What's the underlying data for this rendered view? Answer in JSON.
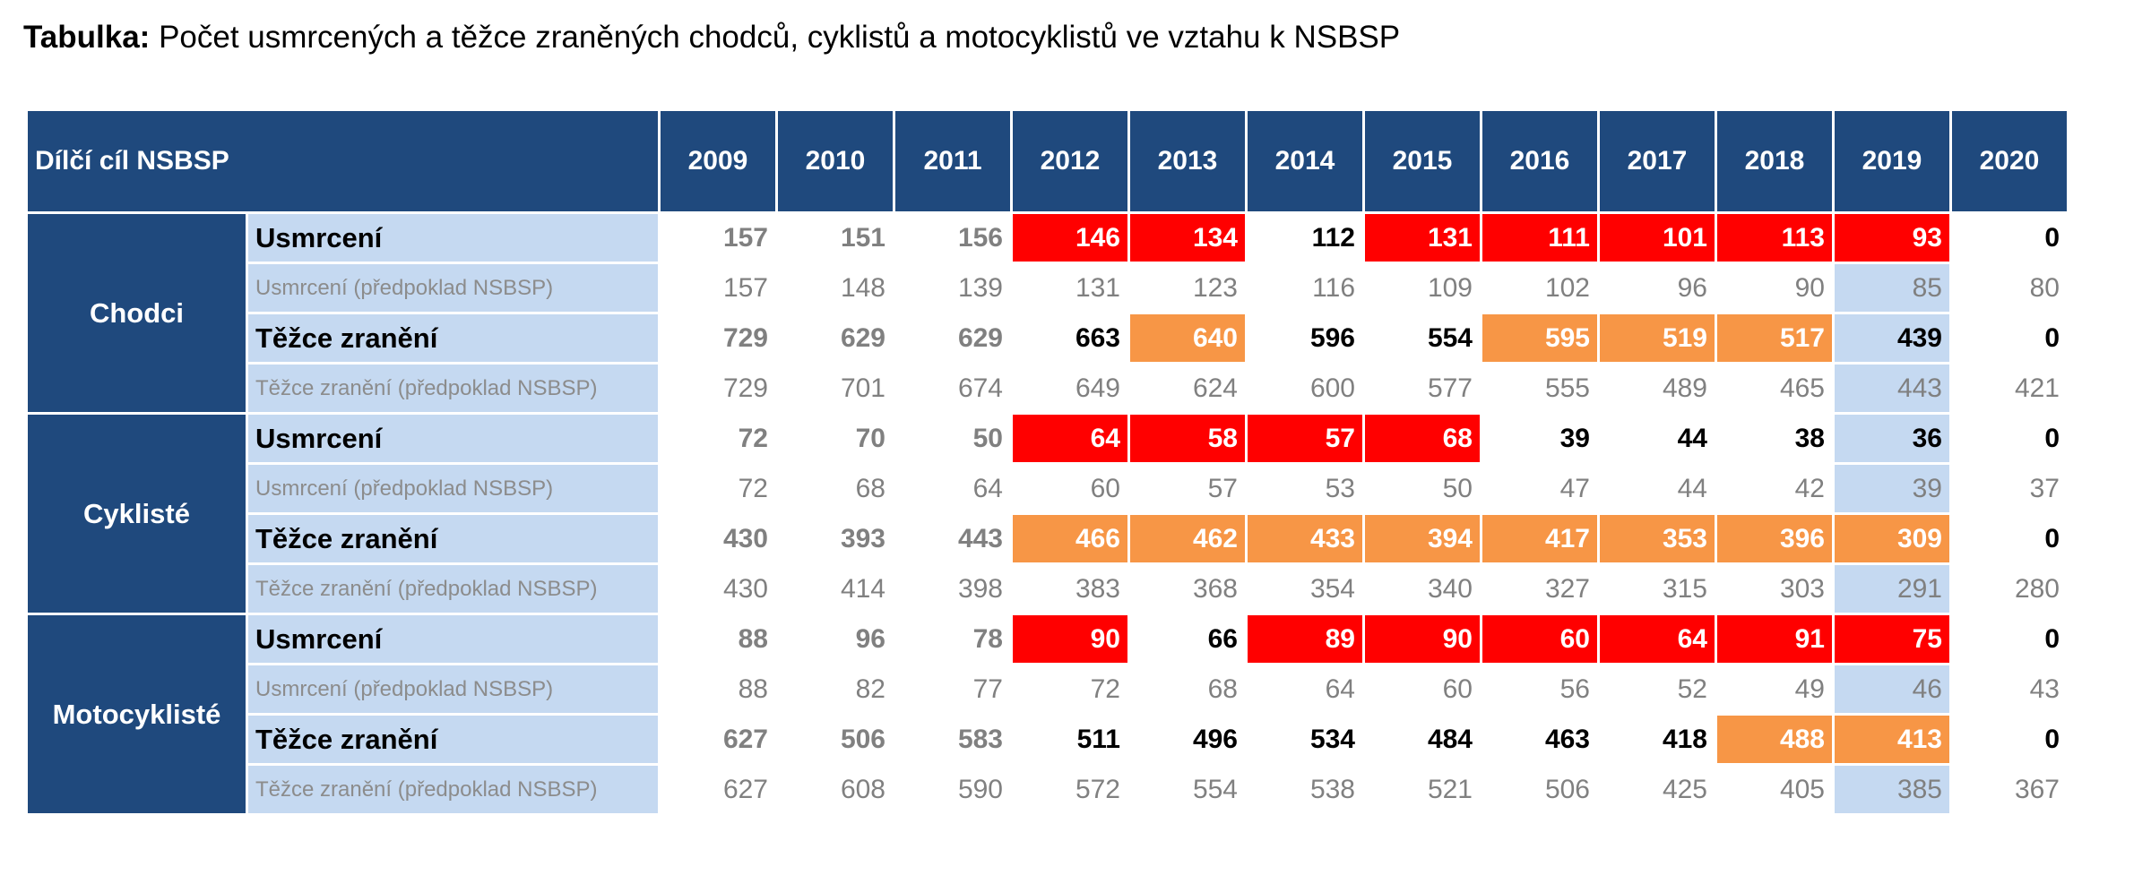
{
  "title": {
    "bold": "Tabulka:",
    "text": "Počet usmrcených a těžce zraněných chodců, cyklistů a motocyklistů ve vztahu k NSBSP"
  },
  "header": {
    "label": "Dílčí cíl NSBSP",
    "years": [
      "2009",
      "2010",
      "2011",
      "2012",
      "2013",
      "2014",
      "2015",
      "2016",
      "2017",
      "2018",
      "2019",
      "2020"
    ]
  },
  "colors": {
    "header_bg": "#1f497d",
    "label_bg": "#c5d9f1",
    "red": "#ff0000",
    "orange": "#f79646"
  },
  "groups": [
    {
      "name": "Chodci",
      "rows": [
        {
          "label": "Usmrcení",
          "kind": "actual",
          "values": [
            "157",
            "151",
            "156",
            "146",
            "134",
            "112",
            "131",
            "111",
            "101",
            "113",
            "93",
            "0"
          ],
          "highlight": [
            "",
            "",
            "",
            "red",
            "red",
            "",
            "red",
            "red",
            "red",
            "red",
            "red",
            ""
          ]
        },
        {
          "label": "Usmrcení (předpoklad NSBSP)",
          "kind": "forecast",
          "values": [
            "157",
            "148",
            "139",
            "131",
            "123",
            "116",
            "109",
            "102",
            "96",
            "90",
            "85",
            "80"
          ]
        },
        {
          "label": "Těžce zranění",
          "kind": "actual",
          "values": [
            "729",
            "629",
            "629",
            "663",
            "640",
            "596",
            "554",
            "595",
            "519",
            "517",
            "439",
            "0"
          ],
          "highlight": [
            "",
            "",
            "",
            "",
            "orange",
            "",
            "",
            "orange",
            "orange",
            "orange",
            "",
            ""
          ]
        },
        {
          "label": "Těžce zranění (předpoklad NSBSP)",
          "kind": "forecast",
          "values": [
            "729",
            "701",
            "674",
            "649",
            "624",
            "600",
            "577",
            "555",
            "489",
            "465",
            "443",
            "421"
          ]
        }
      ]
    },
    {
      "name": "Cyklisté",
      "rows": [
        {
          "label": "Usmrcení",
          "kind": "actual",
          "values": [
            "72",
            "70",
            "50",
            "64",
            "58",
            "57",
            "68",
            "39",
            "44",
            "38",
            "36",
            "0"
          ],
          "highlight": [
            "",
            "",
            "",
            "red",
            "red",
            "red",
            "red",
            "",
            "",
            "",
            "",
            ""
          ]
        },
        {
          "label": "Usmrcení (předpoklad NSBSP)",
          "kind": "forecast",
          "values": [
            "72",
            "68",
            "64",
            "60",
            "57",
            "53",
            "50",
            "47",
            "44",
            "42",
            "39",
            "37"
          ]
        },
        {
          "label": "Těžce zranění",
          "kind": "actual",
          "values": [
            "430",
            "393",
            "443",
            "466",
            "462",
            "433",
            "394",
            "417",
            "353",
            "396",
            "309",
            "0"
          ],
          "highlight": [
            "",
            "",
            "",
            "orange",
            "orange",
            "orange",
            "orange",
            "orange",
            "orange",
            "orange",
            "orange",
            ""
          ]
        },
        {
          "label": "Těžce zranění (předpoklad NSBSP)",
          "kind": "forecast",
          "values": [
            "430",
            "414",
            "398",
            "383",
            "368",
            "354",
            "340",
            "327",
            "315",
            "303",
            "291",
            "280"
          ]
        }
      ]
    },
    {
      "name": "Motocyklisté",
      "rows": [
        {
          "label": "Usmrcení",
          "kind": "actual",
          "values": [
            "88",
            "96",
            "78",
            "90",
            "66",
            "89",
            "90",
            "60",
            "64",
            "91",
            "75",
            "0"
          ],
          "highlight": [
            "",
            "",
            "",
            "red",
            "",
            "red",
            "red",
            "red",
            "red",
            "red",
            "red",
            ""
          ]
        },
        {
          "label": "Usmrcení (předpoklad NSBSP)",
          "kind": "forecast",
          "values": [
            "88",
            "82",
            "77",
            "72",
            "68",
            "64",
            "60",
            "56",
            "52",
            "49",
            "46",
            "43"
          ]
        },
        {
          "label": "Těžce zranění",
          "kind": "actual",
          "values": [
            "627",
            "506",
            "583",
            "511",
            "496",
            "534",
            "484",
            "463",
            "418",
            "488",
            "413",
            "0"
          ],
          "highlight": [
            "",
            "",
            "",
            "",
            "",
            "",
            "",
            "",
            "",
            "orange",
            "orange",
            ""
          ]
        },
        {
          "label": "Těžce zranění (předpoklad NSBSP)",
          "kind": "forecast",
          "values": [
            "627",
            "608",
            "590",
            "572",
            "554",
            "538",
            "521",
            "506",
            "425",
            "405",
            "385",
            "367"
          ]
        }
      ]
    }
  ]
}
